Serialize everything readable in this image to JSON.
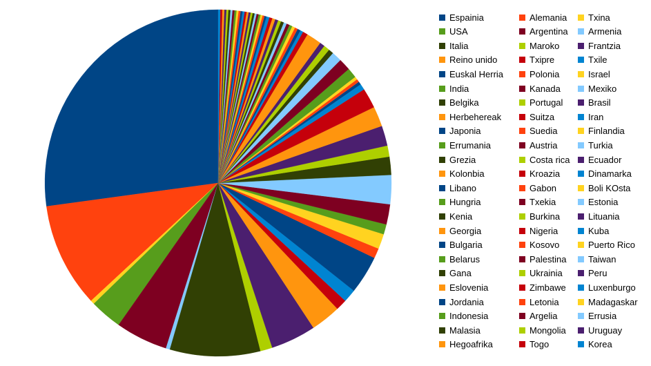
{
  "chart_data": {
    "type": "pie",
    "title": "",
    "legend_position": "right",
    "palette": [
      "#004586",
      "#ff420e",
      "#ffd320",
      "#579d1c",
      "#7e0021",
      "#83caff",
      "#314004",
      "#aecf00",
      "#4b1f6f",
      "#ff950e",
      "#c5000b",
      "#0084d1"
    ],
    "categories": [
      "Espainia",
      "Alemania",
      "Txina",
      "USA",
      "Argentina",
      "Armenia",
      "Italia",
      "Maroko",
      "Frantzia",
      "Reino unido",
      "Txipre",
      "Txile",
      "Euskal Herria",
      "Polonia",
      "Israel",
      "India",
      "Kanada",
      "Mexiko",
      "Belgika",
      "Portugal",
      "Brasil",
      "Herbehereak",
      "Suitza",
      "Iran",
      "Japonia",
      "Suedia",
      "Finlandia",
      "Errumania",
      "Austria",
      "Turkia",
      "Grezia",
      "Costa rica",
      "Ecuador",
      "Kolonbia",
      "Kroazia",
      "Dinamarka",
      "Libano",
      "Gabon",
      "Boli KOsta",
      "Hungria",
      "Txekia",
      "Estonia",
      "Kenia",
      "Burkina",
      "Lituania",
      "Georgia",
      "Nigeria",
      "Kuba",
      "Bulgaria",
      "Kosovo",
      "Puerto Rico",
      "Belarus",
      "Palestina",
      "Taiwan",
      "Gana",
      "Ukrainia",
      "Peru",
      "Eslovenia",
      "Zimbawe",
      "Luxenburgo",
      "Jordania",
      "Letonia",
      "Madagaskar",
      "Indonesia",
      "Argelia",
      "Errusia",
      "Malasia",
      "Mongolia",
      "Uruguay",
      "Hegoafrika",
      "Togo",
      "Korea"
    ],
    "values": [
      29.0,
      10.4,
      0.4,
      3.2,
      5.2,
      0.4,
      9.0,
      1.2,
      4.5,
      3.0,
      1.1,
      1.3,
      3.8,
      1.0,
      1.5,
      1.0,
      2.0,
      2.9,
      1.8,
      1.1,
      2.0,
      2.0,
      2.0,
      0.6,
      0.3,
      0.3,
      0.3,
      1.0,
      1.2,
      1.0,
      0.5,
      0.6,
      0.5,
      1.5,
      0.5,
      0.3,
      0.3,
      0.3,
      0.3,
      0.3,
      0.3,
      0.3,
      0.3,
      0.3,
      0.3,
      0.3,
      0.3,
      0.3,
      0.2,
      0.2,
      0.2,
      0.2,
      0.2,
      0.2,
      0.2,
      0.2,
      0.2,
      0.2,
      0.2,
      0.2,
      0.2,
      0.2,
      0.2,
      0.2,
      0.2,
      0.2,
      0.2,
      0.2,
      0.2,
      0.2,
      0.2,
      0.2
    ]
  }
}
